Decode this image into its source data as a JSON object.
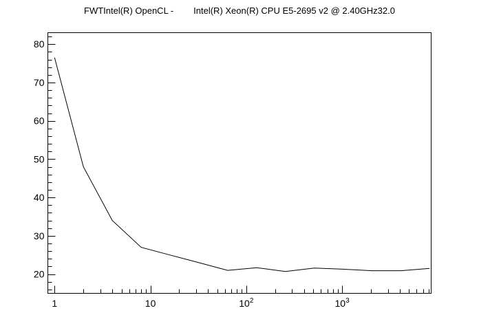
{
  "chart_data": {
    "type": "line",
    "title": "FWTIntel(R) OpenCL -        Intel(R) Xeon(R) CPU E5-2695 v2 @ 2.40GHz32.0",
    "xlabel": "",
    "ylabel": "",
    "x_scale": "log",
    "xlim": [
      0.85,
      8500
    ],
    "ylim": [
      15,
      83
    ],
    "grid": false,
    "x_ticks": [
      {
        "value": 1,
        "base": "1",
        "exp": ""
      },
      {
        "value": 10,
        "base": "10",
        "exp": ""
      },
      {
        "value": 100,
        "base": "10",
        "exp": "2"
      },
      {
        "value": 1000,
        "base": "10",
        "exp": "3"
      }
    ],
    "y_ticks": [
      20,
      30,
      40,
      50,
      60,
      70,
      80
    ],
    "series": [
      {
        "x": [
          1,
          2,
          4,
          8,
          16,
          32,
          64,
          128,
          256,
          512,
          1024,
          2048,
          4096,
          8192
        ],
        "y": [
          76.5,
          48,
          34,
          27,
          25,
          23,
          21,
          21.7,
          20.7,
          21.6,
          21.3,
          20.9,
          20.9,
          21.5
        ]
      }
    ]
  }
}
